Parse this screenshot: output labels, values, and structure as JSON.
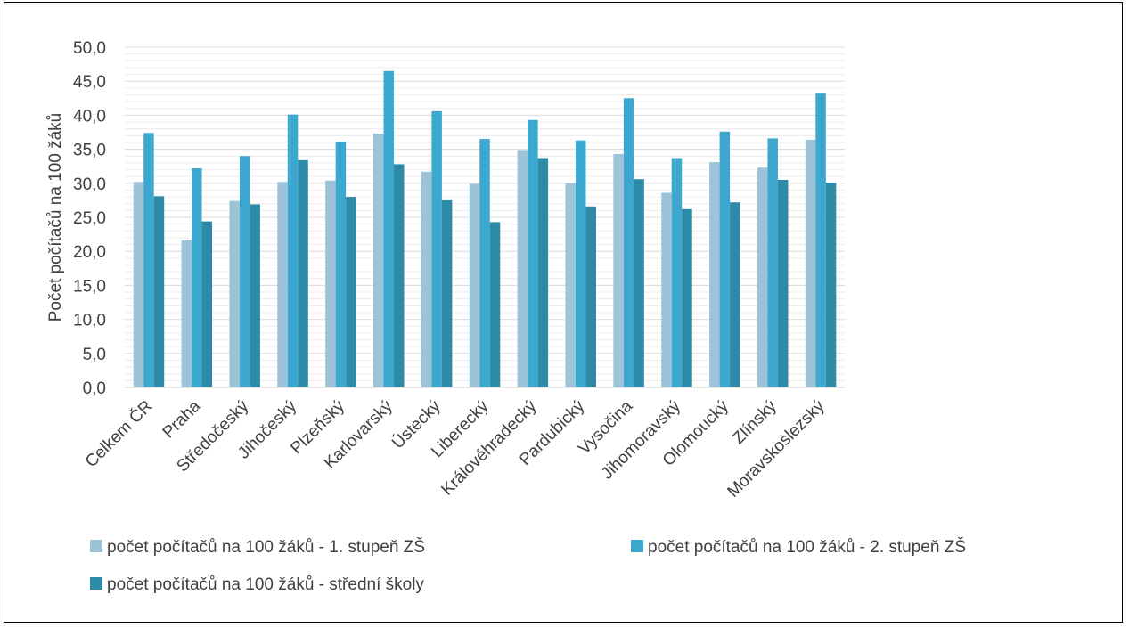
{
  "chart_data": {
    "type": "bar",
    "title": "",
    "xlabel": "",
    "ylabel": "Počet počítačů na 100 žáků",
    "ylim": [
      0,
      50
    ],
    "ytick_step": 5,
    "ytick_labels": [
      "0,0",
      "5,0",
      "10,0",
      "15,0",
      "20,0",
      "25,0",
      "30,0",
      "35,0",
      "40,0",
      "45,0",
      "50,0"
    ],
    "grid": true,
    "legend_position": "bottom",
    "categories": [
      "Celkem ČR",
      "Praha",
      "Středočeský",
      "Jihočeský",
      "Plzeňský",
      "Karlovarský",
      "Ústecký",
      "Liberecký",
      "Královéhradecký",
      "Pardubický",
      "Vysočina",
      "Jihomoravský",
      "Olomoucký",
      "Zlínský",
      "Moravskoslezský"
    ],
    "series": [
      {
        "name": "počet počítačů na 100 žáků - 1. stupeň ZŠ",
        "color": "#9DC3D9",
        "values": [
          30.2,
          21.6,
          27.4,
          30.2,
          30.4,
          37.3,
          31.7,
          29.9,
          34.9,
          30.0,
          34.3,
          28.6,
          33.1,
          32.3,
          36.4
        ]
      },
      {
        "name": "počet počítačů na 100 žáků - 2. stupeň ZŠ",
        "color": "#3CA8CF",
        "values": [
          37.4,
          32.2,
          34.0,
          40.1,
          36.1,
          46.5,
          40.6,
          36.5,
          39.3,
          36.3,
          42.5,
          33.7,
          37.6,
          36.6,
          43.3
        ]
      },
      {
        "name": "počet počítačů na 100 žáků - střední školy",
        "color": "#2D8BA7",
        "values": [
          28.1,
          24.4,
          26.9,
          33.4,
          28.0,
          32.8,
          27.5,
          24.3,
          33.7,
          26.6,
          30.6,
          26.2,
          27.2,
          30.5,
          30.1
        ]
      }
    ]
  }
}
